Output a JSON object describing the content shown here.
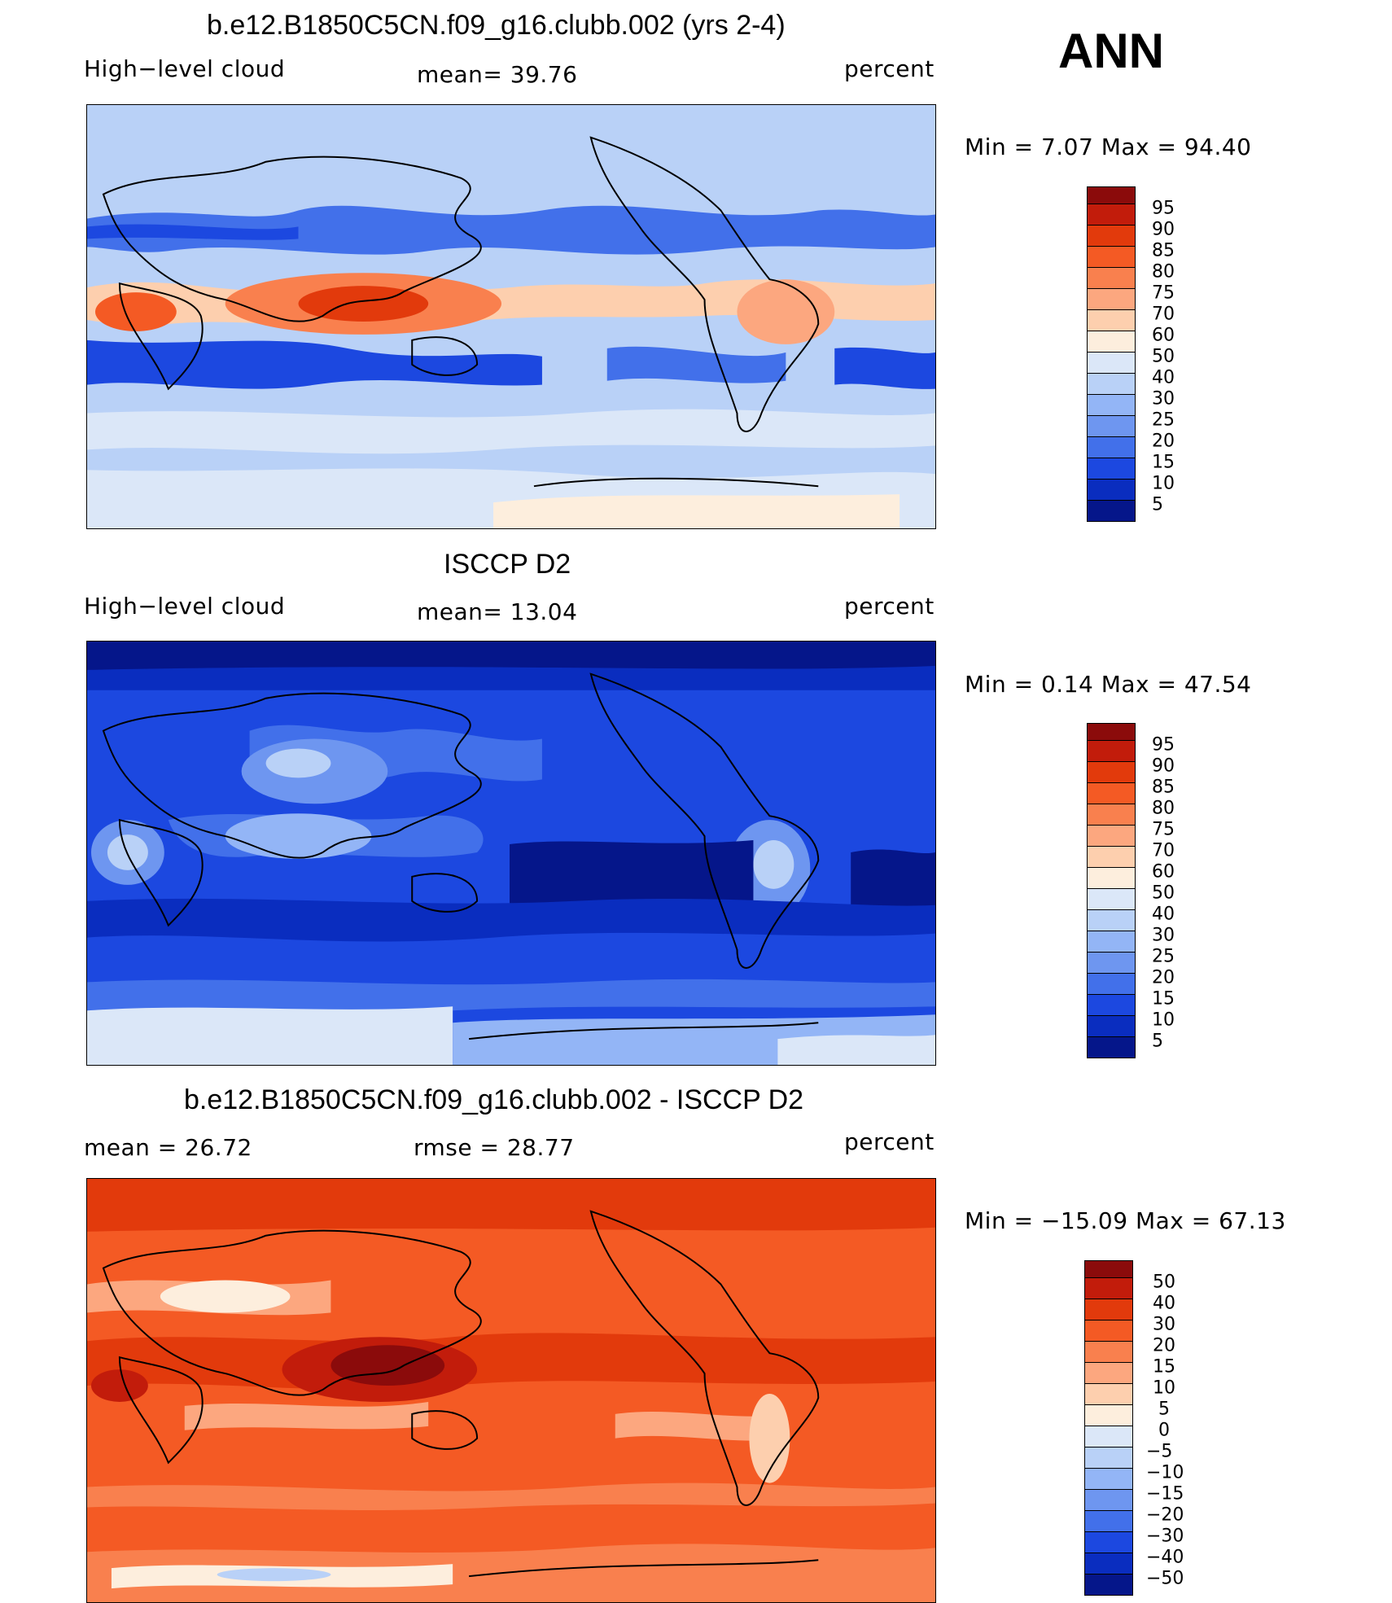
{
  "season": "ANN",
  "panels": [
    {
      "id": "model",
      "title": "b.e12.B1850C5CN.f09_g16.clubb.002 (yrs 2-4)",
      "left_label": "High−level cloud",
      "mid_label": "mean=   39.76",
      "units": "percent",
      "minmax": "Min  =    7.07  Max  =    94.40",
      "colorbar": [
        "95",
        "90",
        "85",
        "80",
        "75",
        "70",
        "60",
        "50",
        "40",
        "30",
        "25",
        "20",
        "15",
        "10",
        "5"
      ]
    },
    {
      "id": "obs",
      "title": "ISCCP D2",
      "left_label": "High−level cloud",
      "mid_label": "mean=   13.04",
      "units": "percent",
      "minmax": "Min  =    0.14  Max  =    47.54",
      "colorbar": [
        "95",
        "90",
        "85",
        "80",
        "75",
        "70",
        "60",
        "50",
        "40",
        "30",
        "25",
        "20",
        "15",
        "10",
        "5"
      ]
    },
    {
      "id": "diff",
      "title": "b.e12.B1850C5CN.f09_g16.clubb.002 - ISCCP D2",
      "left_label": "mean  =    26.72",
      "mid_label": "rmse  =    28.77",
      "units": "percent",
      "minmax": "Min  = −15.09  Max  =    67.13",
      "colorbar": [
        "50",
        "40",
        "30",
        "20",
        "15",
        "10",
        "5",
        "0",
        "−5",
        "−10",
        "−15",
        "−20",
        "−30",
        "−40",
        "−50"
      ]
    }
  ],
  "colors": {
    "palette": [
      "#8b0b0b",
      "#c21c0b",
      "#e23a0c",
      "#f45a24",
      "#f9804e",
      "#fca77f",
      "#fdcfae",
      "#fdeedd",
      "#dbe7f8",
      "#b9d1f7",
      "#93b5f6",
      "#6e96f0",
      "#4270ea",
      "#1c48e0",
      "#0a2dbf",
      "#05168a"
    ]
  }
}
